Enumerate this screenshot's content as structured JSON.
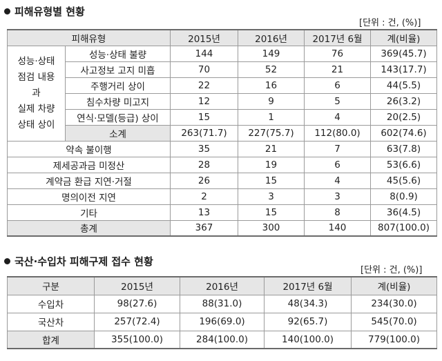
{
  "section1": {
    "title": "피해유형별 현황",
    "unit": "[단위 : 건, (%)]",
    "headers": [
      "피해유형",
      "2015년",
      "2016년",
      "2017년 6월",
      "계(비율)"
    ],
    "group_label_lines": [
      "성능·상태",
      "점검 내용",
      "과",
      "실제 차량",
      "상태 상이"
    ],
    "group_rows": [
      {
        "label": "성능·상태 불량",
        "v": [
          "144",
          "149",
          "76",
          "369(45.7)"
        ]
      },
      {
        "label": "사고정보 고지 미흡",
        "v": [
          "70",
          "52",
          "21",
          "143(17.7)"
        ]
      },
      {
        "label": "주행거리 상이",
        "v": [
          "22",
          "16",
          "6",
          "44(5.5)"
        ]
      },
      {
        "label": "침수차량 미고지",
        "v": [
          "12",
          "9",
          "5",
          "26(3.2)"
        ]
      },
      {
        "label": "연식·모델(등급) 상이",
        "v": [
          "15",
          "1",
          "4",
          "20(2.5)"
        ]
      },
      {
        "label": "소계",
        "v": [
          "263(71.7)",
          "227(75.7)",
          "112(80.0)",
          "602(74.6)"
        ]
      }
    ],
    "rows": [
      {
        "label": "약속 불이행",
        "v": [
          "35",
          "21",
          "7",
          "63(7.8)"
        ]
      },
      {
        "label": "제세공과금 미정산",
        "v": [
          "28",
          "19",
          "6",
          "53(6.6)"
        ]
      },
      {
        "label": "계약금 환급 지연·거절",
        "v": [
          "26",
          "15",
          "4",
          "45(5.6)"
        ]
      },
      {
        "label": "명의이전 지연",
        "v": [
          "2",
          "3",
          "3",
          "8(0.9)"
        ]
      },
      {
        "label": "기타",
        "v": [
          "13",
          "15",
          "8",
          "36(4.5)"
        ]
      },
      {
        "label": "총계",
        "v": [
          "367",
          "300",
          "140",
          "807(100.0)"
        ]
      }
    ]
  },
  "section2": {
    "title": "국산·수입차 피해구제 접수 현황",
    "unit": "[단위 : 건, (%)]",
    "headers": [
      "구분",
      "2015년",
      "2016년",
      "2017년 6월",
      "계(비율)"
    ],
    "rows": [
      {
        "label": "수입차",
        "v": [
          "98(27.6)",
          "88(31.0)",
          "48(34.3)",
          "234(30.0)"
        ]
      },
      {
        "label": "국산차",
        "v": [
          "257(72.4)",
          "196(69.0)",
          "92(65.7)",
          "545(70.0)"
        ]
      },
      {
        "label": "합계",
        "v": [
          "355(100.0)",
          "284(100.0)",
          "140(100.0)",
          "779(100.0)"
        ]
      }
    ]
  }
}
